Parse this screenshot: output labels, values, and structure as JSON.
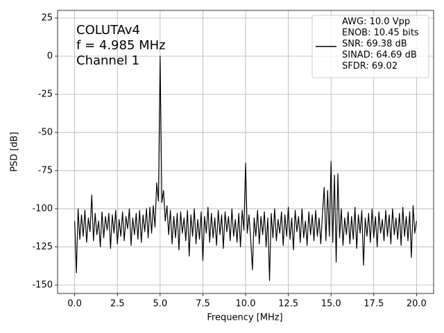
{
  "chart_data": {
    "type": "line",
    "annotations": [
      "COLUTAv4",
      "f = 4.985 MHz",
      "Channel 1"
    ],
    "xlabel": "Frequency [MHz]",
    "ylabel": "PSD [dB]",
    "x": [
      0,
      0.1,
      0.2,
      0.3,
      0.4,
      0.5,
      0.6,
      0.7,
      0.8,
      0.9,
      1,
      1.1,
      1.2,
      1.3,
      1.4,
      1.5,
      1.6,
      1.7,
      1.8,
      1.9,
      2,
      2.1,
      2.2,
      2.3,
      2.4,
      2.5,
      2.6,
      2.7,
      2.8,
      2.9,
      3,
      3.1,
      3.2,
      3.3,
      3.4,
      3.5,
      3.6,
      3.7,
      3.8,
      3.9,
      4,
      4.1,
      4.2,
      4.3,
      4.4,
      4.5,
      4.6,
      4.7,
      4.8,
      4.9,
      5,
      5.1,
      5.2,
      5.3,
      5.4,
      5.5,
      5.6,
      5.7,
      5.8,
      5.9,
      6,
      6.1,
      6.2,
      6.3,
      6.4,
      6.5,
      6.6,
      6.7,
      6.8,
      6.9,
      7,
      7.1,
      7.2,
      7.3,
      7.4,
      7.5,
      7.6,
      7.7,
      7.8,
      7.9,
      8,
      8.1,
      8.2,
      8.3,
      8.4,
      8.5,
      8.6,
      8.7,
      8.8,
      8.9,
      9,
      9.1,
      9.2,
      9.3,
      9.4,
      9.5,
      9.6,
      9.7,
      9.8,
      9.9,
      10,
      10.1,
      10.2,
      10.3,
      10.4,
      10.5,
      10.6,
      10.7,
      10.8,
      10.9,
      11,
      11.1,
      11.2,
      11.3,
      11.4,
      11.5,
      11.6,
      11.7,
      11.8,
      11.9,
      12,
      12.1,
      12.2,
      12.3,
      12.4,
      12.5,
      12.6,
      12.7,
      12.8,
      12.9,
      13,
      13.1,
      13.2,
      13.3,
      13.4,
      13.5,
      13.6,
      13.7,
      13.8,
      13.9,
      14,
      14.1,
      14.2,
      14.3,
      14.4,
      14.5,
      14.6,
      14.7,
      14.8,
      14.9,
      15,
      15.1,
      15.2,
      15.3,
      15.4,
      15.5,
      15.6,
      15.7,
      15.8,
      15.9,
      16,
      16.1,
      16.2,
      16.3,
      16.4,
      16.5,
      16.6,
      16.7,
      16.8,
      16.9,
      17,
      17.1,
      17.2,
      17.3,
      17.4,
      17.5,
      17.6,
      17.7,
      17.8,
      17.9,
      18,
      18.1,
      18.2,
      18.3,
      18.4,
      18.5,
      18.6,
      18.7,
      18.8,
      18.9,
      19,
      19.1,
      19.2,
      19.3,
      19.4,
      19.5,
      19.6,
      19.7,
      19.8,
      19.9,
      20
    ],
    "series": [
      {
        "name": "AWG: 10.0 Vpp\nENOB: 10.45 bits\nSNR: 69.38 dB\nSINAD: 64.69 dB\nSFDR: 69.02",
        "color": "#000000",
        "values": [
          -108,
          -142,
          -100,
          -120,
          -104,
          -118,
          -101,
          -122,
          -106,
          -115,
          -91,
          -121,
          -103,
          -117,
          -108,
          -125,
          -102,
          -119,
          -105,
          -114,
          -103,
          -126,
          -104,
          -116,
          -101,
          -123,
          -107,
          -118,
          -102,
          -121,
          -105,
          -113,
          -100,
          -124,
          -106,
          -117,
          -103,
          -120,
          -101,
          -122,
          -104,
          -115,
          -100,
          -119,
          -99,
          -116,
          -98,
          -112,
          -83,
          -95,
          0,
          -96,
          -88,
          -108,
          -98,
          -117,
          -101,
          -123,
          -105,
          -119,
          -103,
          -127,
          -102,
          -116,
          -106,
          -121,
          -101,
          -131,
          -104,
          -118,
          -100,
          -123,
          -107,
          -120,
          -102,
          -134,
          -105,
          -116,
          -99,
          -122,
          -103,
          -119,
          -106,
          -124,
          -101,
          -117,
          -104,
          -126,
          -102,
          -115,
          -105,
          -121,
          -100,
          -118,
          -107,
          -122,
          -103,
          -125,
          -101,
          -114,
          -70,
          -116,
          -104,
          -120,
          -140,
          -106,
          -118,
          -101,
          -123,
          -105,
          -117,
          -102,
          -125,
          -106,
          -147,
          -103,
          -119,
          -100,
          -121,
          -107,
          -116,
          -102,
          -124,
          -104,
          -118,
          -99,
          -120,
          -106,
          -127,
          -101,
          -115,
          -105,
          -122,
          -100,
          -119,
          -108,
          -124,
          -102,
          -117,
          -104,
          -121,
          -101,
          -118,
          -106,
          -123,
          -103,
          -86,
          -121,
          -88,
          -118,
          -69,
          -122,
          -78,
          -135,
          -77,
          -119,
          -100,
          -124,
          -106,
          -117,
          -102,
          -123,
          -105,
          -120,
          -99,
          -126,
          -104,
          -116,
          -101,
          -137,
          -106,
          -118,
          -103,
          -122,
          -100,
          -119,
          -105,
          -125,
          -102,
          -116,
          -107,
          -121,
          -101,
          -118,
          -104,
          -123,
          -100,
          -117,
          -106,
          -120,
          -103,
          -124,
          -99,
          -118,
          -105,
          -121,
          -102,
          -132,
          -98,
          -116,
          -108
        ]
      }
    ],
    "xlim": [
      -1.0,
      21.0
    ],
    "ylim": [
      -155.5,
      30
    ],
    "xticks": [
      {
        "value": 0,
        "label": "0.0"
      },
      {
        "value": 2.5,
        "label": "2.5"
      },
      {
        "value": 5,
        "label": "5.0"
      },
      {
        "value": 7.5,
        "label": "7.5"
      },
      {
        "value": 10,
        "label": "10.0"
      },
      {
        "value": 12.5,
        "label": "12.5"
      },
      {
        "value": 15,
        "label": "15.0"
      },
      {
        "value": 17.5,
        "label": "17.5"
      },
      {
        "value": 20,
        "label": "20.0"
      }
    ],
    "yticks": [
      -150,
      -125,
      -100,
      -75,
      -50,
      -25,
      0,
      25
    ],
    "grid": true,
    "legend": "upper right"
  }
}
